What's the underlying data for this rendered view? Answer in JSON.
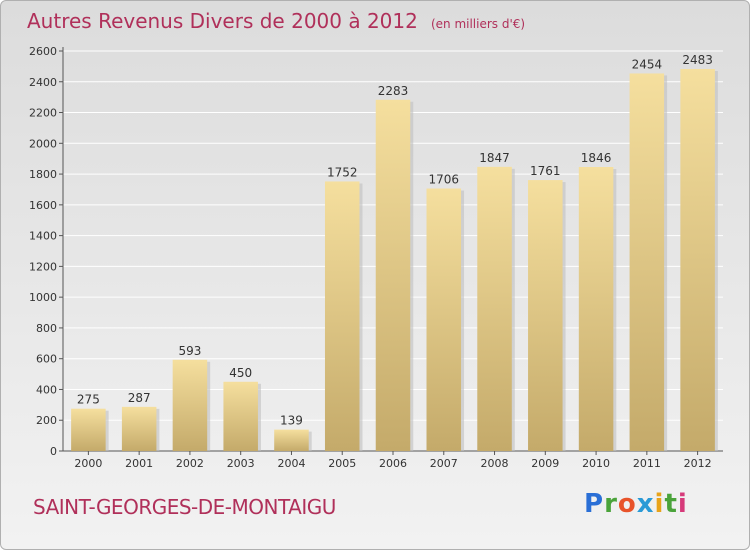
{
  "header": {
    "title": "Autres Revenus Divers de 2000 à 2012",
    "unit": "(en milliers d'€)"
  },
  "footer": {
    "commune": "SAINT-GEORGES-DE-MONTAIGU",
    "logo_letters": [
      "P",
      "r",
      "o",
      "x",
      "i",
      "t",
      "i"
    ]
  },
  "colors": {
    "title": "#b0305a",
    "bar_light": "#f5df9e",
    "bar_dark": "#c4aa6a",
    "grid": "#ffffff"
  },
  "chart_data": {
    "type": "bar",
    "title": "Autres Revenus Divers de 2000 à 2012",
    "subtitle": "(en milliers d'€)",
    "xlabel": "",
    "ylabel": "",
    "categories": [
      "2000",
      "2001",
      "2002",
      "2003",
      "2004",
      "2005",
      "2006",
      "2007",
      "2008",
      "2009",
      "2010",
      "2011",
      "2012"
    ],
    "values": [
      275,
      287,
      593,
      450,
      139,
      1752,
      2283,
      1706,
      1847,
      1761,
      1846,
      2454,
      2483
    ],
    "data_labels": [
      "275",
      "287",
      "593",
      "450",
      "139",
      "1752",
      "2283",
      "1706",
      "1847",
      "1761",
      "1846",
      "2454",
      "2483"
    ],
    "ylim": [
      0,
      2600
    ],
    "yticks": [
      0,
      200,
      400,
      600,
      800,
      1000,
      1200,
      1400,
      1600,
      1800,
      2000,
      2200,
      2400,
      2600
    ],
    "ytick_labels": [
      "0",
      "200",
      "400",
      "600",
      "800",
      "1000",
      "1200",
      "1400",
      "1600",
      "1800",
      "2000",
      "2200",
      "2400",
      "2600"
    ],
    "grid": true,
    "legend": "none"
  }
}
